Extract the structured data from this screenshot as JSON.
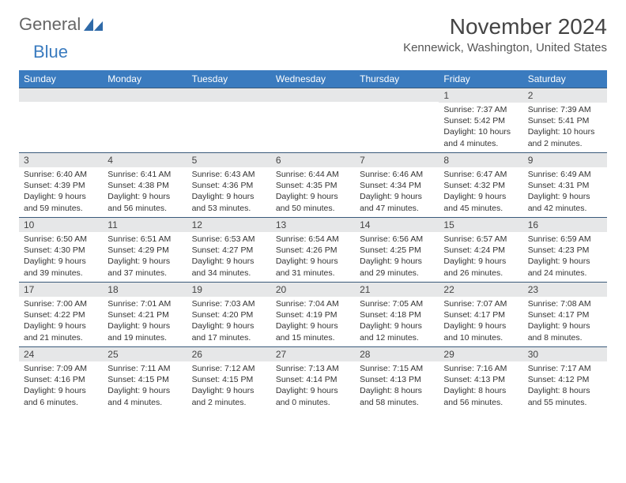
{
  "logo": {
    "text1": "General",
    "text2": "Blue"
  },
  "title": "November 2024",
  "location": "Kennewick, Washington, United States",
  "header_bg": "#3a7bbf",
  "band_bg": "#e6e7e8",
  "band_border": "#3a5a7a",
  "weekdays": [
    "Sunday",
    "Monday",
    "Tuesday",
    "Wednesday",
    "Thursday",
    "Friday",
    "Saturday"
  ],
  "weeks": [
    [
      {
        "n": "",
        "sr": "",
        "ss": "",
        "dl": ""
      },
      {
        "n": "",
        "sr": "",
        "ss": "",
        "dl": ""
      },
      {
        "n": "",
        "sr": "",
        "ss": "",
        "dl": ""
      },
      {
        "n": "",
        "sr": "",
        "ss": "",
        "dl": ""
      },
      {
        "n": "",
        "sr": "",
        "ss": "",
        "dl": ""
      },
      {
        "n": "1",
        "sr": "Sunrise: 7:37 AM",
        "ss": "Sunset: 5:42 PM",
        "dl": "Daylight: 10 hours and 4 minutes."
      },
      {
        "n": "2",
        "sr": "Sunrise: 7:39 AM",
        "ss": "Sunset: 5:41 PM",
        "dl": "Daylight: 10 hours and 2 minutes."
      }
    ],
    [
      {
        "n": "3",
        "sr": "Sunrise: 6:40 AM",
        "ss": "Sunset: 4:39 PM",
        "dl": "Daylight: 9 hours and 59 minutes."
      },
      {
        "n": "4",
        "sr": "Sunrise: 6:41 AM",
        "ss": "Sunset: 4:38 PM",
        "dl": "Daylight: 9 hours and 56 minutes."
      },
      {
        "n": "5",
        "sr": "Sunrise: 6:43 AM",
        "ss": "Sunset: 4:36 PM",
        "dl": "Daylight: 9 hours and 53 minutes."
      },
      {
        "n": "6",
        "sr": "Sunrise: 6:44 AM",
        "ss": "Sunset: 4:35 PM",
        "dl": "Daylight: 9 hours and 50 minutes."
      },
      {
        "n": "7",
        "sr": "Sunrise: 6:46 AM",
        "ss": "Sunset: 4:34 PM",
        "dl": "Daylight: 9 hours and 47 minutes."
      },
      {
        "n": "8",
        "sr": "Sunrise: 6:47 AM",
        "ss": "Sunset: 4:32 PM",
        "dl": "Daylight: 9 hours and 45 minutes."
      },
      {
        "n": "9",
        "sr": "Sunrise: 6:49 AM",
        "ss": "Sunset: 4:31 PM",
        "dl": "Daylight: 9 hours and 42 minutes."
      }
    ],
    [
      {
        "n": "10",
        "sr": "Sunrise: 6:50 AM",
        "ss": "Sunset: 4:30 PM",
        "dl": "Daylight: 9 hours and 39 minutes."
      },
      {
        "n": "11",
        "sr": "Sunrise: 6:51 AM",
        "ss": "Sunset: 4:29 PM",
        "dl": "Daylight: 9 hours and 37 minutes."
      },
      {
        "n": "12",
        "sr": "Sunrise: 6:53 AM",
        "ss": "Sunset: 4:27 PM",
        "dl": "Daylight: 9 hours and 34 minutes."
      },
      {
        "n": "13",
        "sr": "Sunrise: 6:54 AM",
        "ss": "Sunset: 4:26 PM",
        "dl": "Daylight: 9 hours and 31 minutes."
      },
      {
        "n": "14",
        "sr": "Sunrise: 6:56 AM",
        "ss": "Sunset: 4:25 PM",
        "dl": "Daylight: 9 hours and 29 minutes."
      },
      {
        "n": "15",
        "sr": "Sunrise: 6:57 AM",
        "ss": "Sunset: 4:24 PM",
        "dl": "Daylight: 9 hours and 26 minutes."
      },
      {
        "n": "16",
        "sr": "Sunrise: 6:59 AM",
        "ss": "Sunset: 4:23 PM",
        "dl": "Daylight: 9 hours and 24 minutes."
      }
    ],
    [
      {
        "n": "17",
        "sr": "Sunrise: 7:00 AM",
        "ss": "Sunset: 4:22 PM",
        "dl": "Daylight: 9 hours and 21 minutes."
      },
      {
        "n": "18",
        "sr": "Sunrise: 7:01 AM",
        "ss": "Sunset: 4:21 PM",
        "dl": "Daylight: 9 hours and 19 minutes."
      },
      {
        "n": "19",
        "sr": "Sunrise: 7:03 AM",
        "ss": "Sunset: 4:20 PM",
        "dl": "Daylight: 9 hours and 17 minutes."
      },
      {
        "n": "20",
        "sr": "Sunrise: 7:04 AM",
        "ss": "Sunset: 4:19 PM",
        "dl": "Daylight: 9 hours and 15 minutes."
      },
      {
        "n": "21",
        "sr": "Sunrise: 7:05 AM",
        "ss": "Sunset: 4:18 PM",
        "dl": "Daylight: 9 hours and 12 minutes."
      },
      {
        "n": "22",
        "sr": "Sunrise: 7:07 AM",
        "ss": "Sunset: 4:17 PM",
        "dl": "Daylight: 9 hours and 10 minutes."
      },
      {
        "n": "23",
        "sr": "Sunrise: 7:08 AM",
        "ss": "Sunset: 4:17 PM",
        "dl": "Daylight: 9 hours and 8 minutes."
      }
    ],
    [
      {
        "n": "24",
        "sr": "Sunrise: 7:09 AM",
        "ss": "Sunset: 4:16 PM",
        "dl": "Daylight: 9 hours and 6 minutes."
      },
      {
        "n": "25",
        "sr": "Sunrise: 7:11 AM",
        "ss": "Sunset: 4:15 PM",
        "dl": "Daylight: 9 hours and 4 minutes."
      },
      {
        "n": "26",
        "sr": "Sunrise: 7:12 AM",
        "ss": "Sunset: 4:15 PM",
        "dl": "Daylight: 9 hours and 2 minutes."
      },
      {
        "n": "27",
        "sr": "Sunrise: 7:13 AM",
        "ss": "Sunset: 4:14 PM",
        "dl": "Daylight: 9 hours and 0 minutes."
      },
      {
        "n": "28",
        "sr": "Sunrise: 7:15 AM",
        "ss": "Sunset: 4:13 PM",
        "dl": "Daylight: 8 hours and 58 minutes."
      },
      {
        "n": "29",
        "sr": "Sunrise: 7:16 AM",
        "ss": "Sunset: 4:13 PM",
        "dl": "Daylight: 8 hours and 56 minutes."
      },
      {
        "n": "30",
        "sr": "Sunrise: 7:17 AM",
        "ss": "Sunset: 4:12 PM",
        "dl": "Daylight: 8 hours and 55 minutes."
      }
    ]
  ]
}
